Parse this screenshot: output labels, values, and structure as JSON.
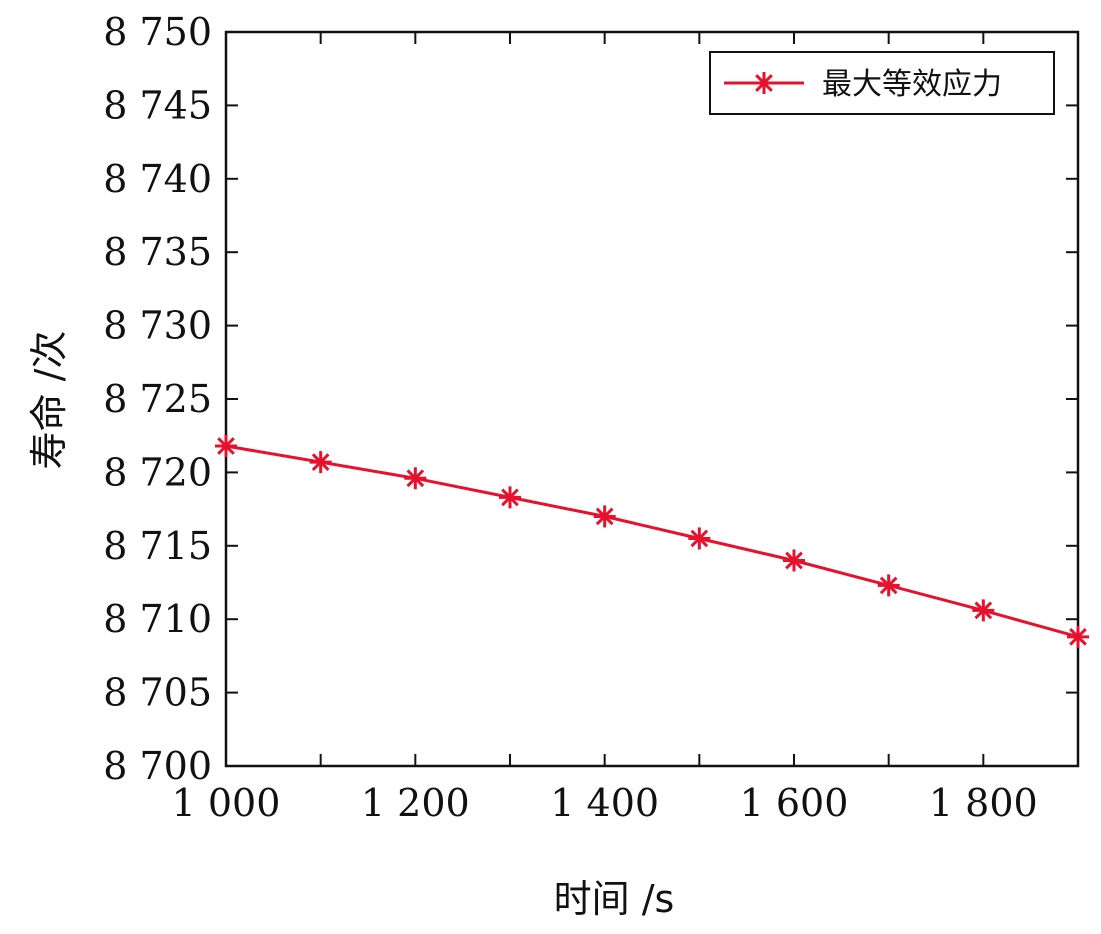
{
  "chart_data": {
    "type": "line",
    "xlabel": "时间 /s",
    "ylabel": "寿命 /次",
    "xlim": [
      1000,
      1900
    ],
    "ylim": [
      8700,
      8750
    ],
    "xticks": [
      1000,
      1100,
      1200,
      1300,
      1400,
      1500,
      1600,
      1700,
      1800,
      1900
    ],
    "xtick_labels": [
      "1 000",
      "",
      "1 200",
      "",
      "1 400",
      "",
      "1 600",
      "",
      "1 800",
      ""
    ],
    "yticks": [
      8700,
      8705,
      8710,
      8715,
      8720,
      8725,
      8730,
      8735,
      8740,
      8745,
      8750
    ],
    "ytick_labels": [
      "8 700",
      "8 705",
      "8 710",
      "8 715",
      "8 720",
      "8 725",
      "8 730",
      "8 735",
      "8 740",
      "8 745",
      "8 750"
    ],
    "grid": false,
    "legend_position": "top-right",
    "series": [
      {
        "name": "最大等效应力",
        "color": "#e8112d",
        "marker": "asterisk",
        "x": [
          1000,
          1100,
          1200,
          1300,
          1400,
          1500,
          1600,
          1700,
          1800,
          1900
        ],
        "y": [
          8721.8,
          8720.7,
          8719.6,
          8718.3,
          8717.0,
          8715.5,
          8714.0,
          8712.3,
          8710.6,
          8708.8
        ]
      }
    ]
  }
}
